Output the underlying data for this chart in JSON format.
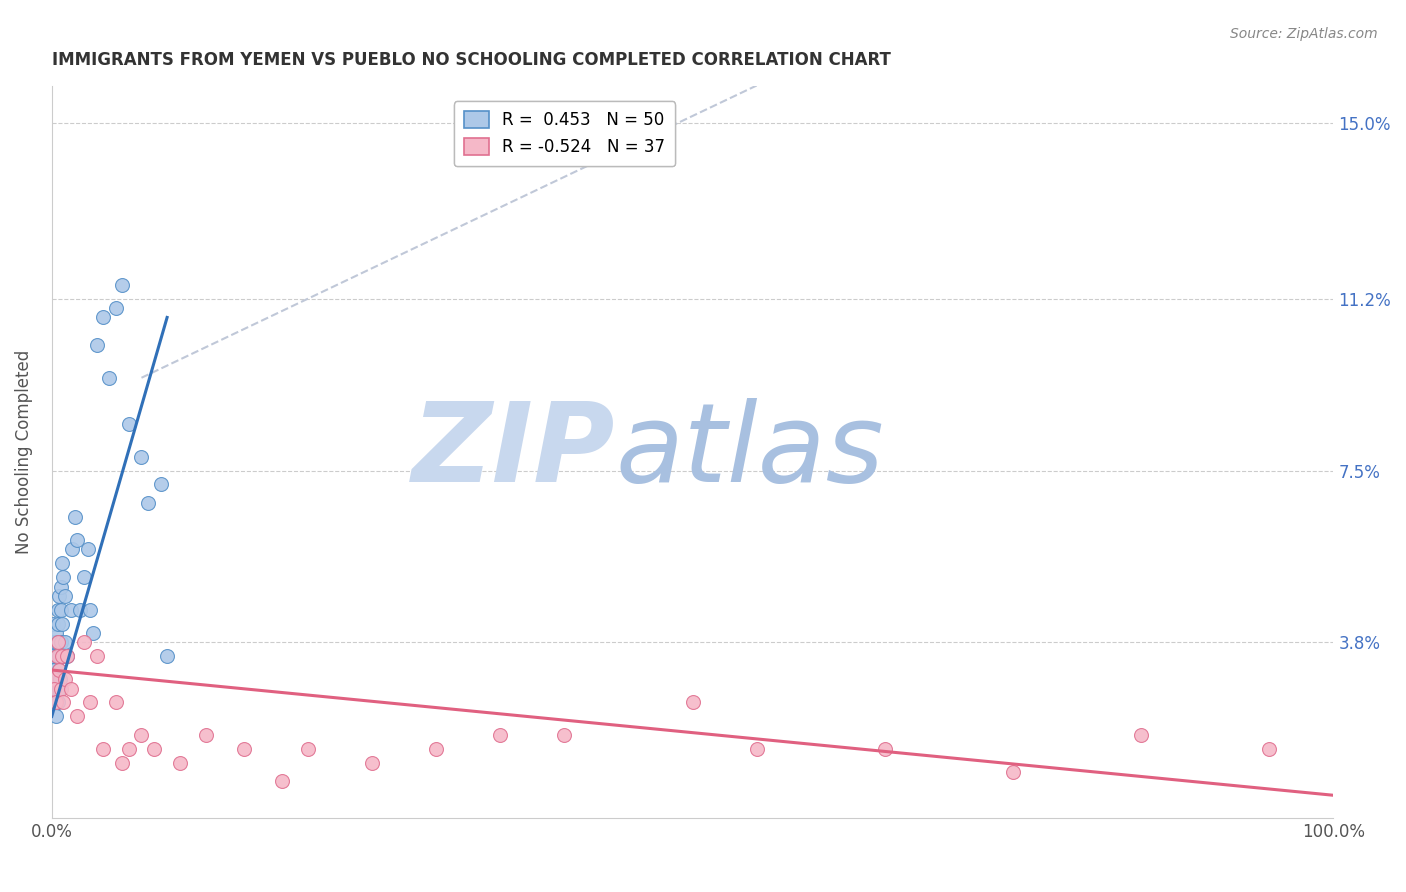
{
  "title": "IMMIGRANTS FROM YEMEN VS PUEBLO NO SCHOOLING COMPLETED CORRELATION CHART",
  "source": "Source: ZipAtlas.com",
  "ylabel": "No Schooling Completed",
  "xlim": [
    0,
    100
  ],
  "ylim": [
    0,
    15.8
  ],
  "yticks": [
    0,
    3.8,
    7.5,
    11.2,
    15.0
  ],
  "ytick_labels": [
    "",
    "3.8%",
    "7.5%",
    "11.2%",
    "15.0%"
  ],
  "xticks": [
    0,
    25,
    50,
    75,
    100
  ],
  "xtick_labels": [
    "0.0%",
    "",
    "",
    "",
    "100.0%"
  ],
  "legend_blue_r": "R =  0.453",
  "legend_blue_n": "N = 50",
  "legend_pink_r": "R = -0.524",
  "legend_pink_n": "N = 37",
  "blue_color": "#adc8e8",
  "blue_edge_color": "#5590c8",
  "blue_line_color": "#3070b8",
  "pink_color": "#f5b8c8",
  "pink_edge_color": "#e07090",
  "pink_line_color": "#e06080",
  "dashed_line_color": "#c0c8d8",
  "watermark_zip_color": "#c8d8ee",
  "watermark_atlas_color": "#a8c0e0",
  "blue_scatter_x": [
    0.1,
    0.1,
    0.15,
    0.2,
    0.2,
    0.25,
    0.3,
    0.3,
    0.3,
    0.35,
    0.4,
    0.4,
    0.45,
    0.5,
    0.5,
    0.5,
    0.55,
    0.6,
    0.6,
    0.6,
    0.65,
    0.7,
    0.7,
    0.75,
    0.8,
    0.8,
    0.85,
    0.9,
    1.0,
    1.0,
    1.2,
    1.5,
    1.6,
    1.8,
    2.0,
    2.2,
    2.5,
    2.8,
    3.0,
    3.2,
    3.5,
    4.0,
    4.5,
    5.0,
    5.5,
    6.0,
    7.0,
    7.5,
    8.5,
    9.0
  ],
  "blue_scatter_y": [
    3.5,
    4.2,
    3.8,
    2.8,
    3.2,
    3.0,
    2.5,
    3.8,
    4.0,
    2.2,
    3.5,
    2.8,
    2.5,
    4.5,
    3.8,
    4.2,
    3.2,
    4.8,
    3.5,
    2.8,
    3.0,
    5.0,
    4.5,
    3.8,
    5.5,
    4.2,
    3.5,
    5.2,
    4.8,
    3.8,
    3.5,
    4.5,
    5.8,
    6.5,
    6.0,
    4.5,
    5.2,
    5.8,
    4.5,
    4.0,
    10.2,
    10.8,
    9.5,
    11.0,
    11.5,
    8.5,
    7.8,
    6.8,
    7.2,
    3.5
  ],
  "pink_scatter_x": [
    0.1,
    0.2,
    0.3,
    0.4,
    0.5,
    0.6,
    0.7,
    0.8,
    0.9,
    1.0,
    1.2,
    1.5,
    2.0,
    2.5,
    3.0,
    3.5,
    4.0,
    5.0,
    5.5,
    6.0,
    7.0,
    8.0,
    10.0,
    12.0,
    15.0,
    18.0,
    20.0,
    25.0,
    30.0,
    35.0,
    40.0,
    50.0,
    55.0,
    65.0,
    75.0,
    85.0,
    95.0
  ],
  "pink_scatter_y": [
    3.0,
    2.8,
    2.5,
    3.5,
    3.8,
    3.2,
    2.8,
    3.5,
    2.5,
    3.0,
    3.5,
    2.8,
    2.2,
    3.8,
    2.5,
    3.5,
    1.5,
    2.5,
    1.2,
    1.5,
    1.8,
    1.5,
    1.2,
    1.8,
    1.5,
    0.8,
    1.5,
    1.2,
    1.5,
    1.8,
    1.8,
    2.5,
    1.5,
    1.5,
    1.0,
    1.8,
    1.5
  ],
  "blue_line_x": [
    0.0,
    9.0
  ],
  "blue_line_y": [
    2.2,
    10.8
  ],
  "dashed_line_x": [
    7.0,
    55.0
  ],
  "dashed_line_y": [
    9.5,
    15.8
  ],
  "pink_line_x": [
    0.0,
    100.0
  ],
  "pink_line_y": [
    3.2,
    0.5
  ]
}
